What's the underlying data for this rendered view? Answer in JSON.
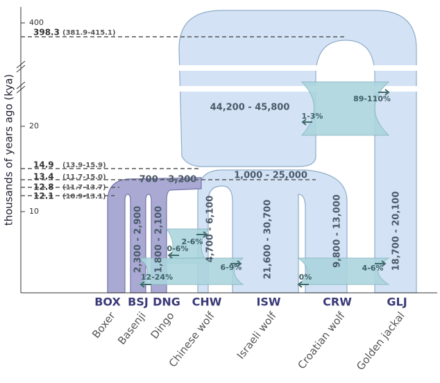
{
  "axis": {
    "label": "thousands of years ago (kya)",
    "ticks": [
      "400",
      "20",
      "10"
    ]
  },
  "times": [
    {
      "value": "398.3",
      "ci": "(381.9-415.1)"
    },
    {
      "value": "14.9",
      "ci": "(13.9-15.9)"
    },
    {
      "value": "13.4",
      "ci": "(11.7-15.0)"
    },
    {
      "value": "12.8",
      "ci": "(11.7-13.7)"
    },
    {
      "value": "12.1",
      "ci": "(10.9-13.1)"
    }
  ],
  "population_sizes": [
    "44,200 - 45,800",
    "1,000 - 25,000",
    "700 - 3,200",
    "2,300 - 2,900",
    "1,800 - 2,100",
    "4,700 - 6,100",
    "21,600 - 30,700",
    "9,800 - 13,000",
    "18,700 - 20,100"
  ],
  "migration": [
    "89-110%",
    "1-3%",
    "2-6%",
    "0-6%",
    "12-24%",
    "6-9%",
    "0%",
    "4-6%"
  ],
  "populations": [
    {
      "code": "BOX",
      "name": "Boxer"
    },
    {
      "code": "BSJ",
      "name": "Basenji"
    },
    {
      "code": "DNG",
      "name": "Dingo"
    },
    {
      "code": "CHW",
      "name": "Chinese wolf"
    },
    {
      "code": "ISW",
      "name": "Israeli wolf"
    },
    {
      "code": "CRW",
      "name": "Croatian wolf"
    },
    {
      "code": "GLJ",
      "name": "Golden jackal"
    }
  ]
}
